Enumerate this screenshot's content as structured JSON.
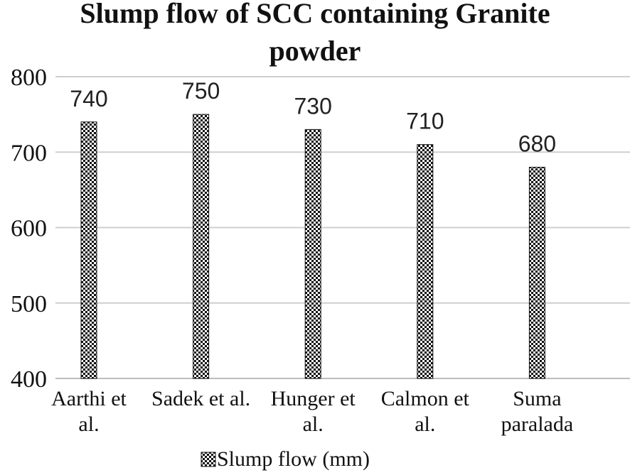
{
  "chart_data": {
    "type": "bar",
    "title_lines": [
      "Slump flow of SCC containing Granite",
      "powder"
    ],
    "categories": [
      [
        "Aarthi et",
        "al."
      ],
      [
        "Sadek et al."
      ],
      [
        "Hunger et",
        "al."
      ],
      [
        "Calmon et",
        "al."
      ],
      [
        "Suma",
        "paralada"
      ]
    ],
    "series": [
      {
        "name": "Slump flow (mm)",
        "values": [
          740,
          750,
          730,
          710,
          680
        ]
      }
    ],
    "ylim": [
      400,
      800
    ],
    "yticks": [
      400,
      500,
      600,
      700,
      800
    ],
    "grid": true,
    "legend_position": "bottom",
    "bar_pattern": "checkered"
  }
}
